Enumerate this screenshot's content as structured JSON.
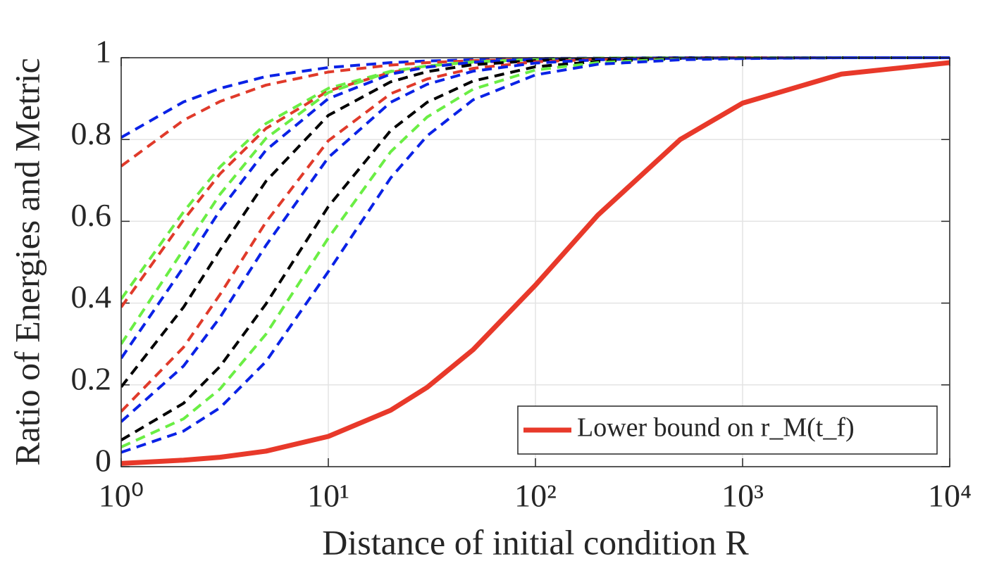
{
  "chart_data": {
    "type": "line",
    "xlabel": "Distance of initial condition R",
    "ylabel": "Ratio of Energies and Metric",
    "x": [
      1,
      2,
      3,
      5,
      10,
      20,
      30,
      50,
      100,
      200,
      500,
      1000,
      3000,
      10000
    ],
    "xscale": "log",
    "xlim": [
      1,
      10000
    ],
    "xticks": [
      {
        "value": 1,
        "label": "10⁰"
      },
      {
        "value": 10,
        "label": "10¹"
      },
      {
        "value": 100,
        "label": "10²"
      },
      {
        "value": 1000,
        "label": "10³"
      },
      {
        "value": 10000,
        "label": "10⁴"
      }
    ],
    "ylim": [
      0,
      1
    ],
    "yticks": [
      0,
      0.2,
      0.4,
      0.6,
      0.8,
      1
    ],
    "grid": true,
    "legend_position": "lower right",
    "series": [
      {
        "color": "#0a22e6",
        "style": "dashed",
        "values": [
          0.805,
          0.892,
          0.925,
          0.954,
          0.976,
          0.988,
          0.992,
          0.995,
          0.998,
          0.999,
          1.0,
          1.0,
          1.0,
          1.0
        ]
      },
      {
        "color": "#e03a2a",
        "style": "dashed",
        "values": [
          0.735,
          0.847,
          0.893,
          0.933,
          0.965,
          0.982,
          0.988,
          0.993,
          0.996,
          0.998,
          0.999,
          1.0,
          1.0,
          1.0
        ]
      },
      {
        "color": "#6aee44",
        "style": "dashed",
        "values": [
          0.41,
          0.623,
          0.733,
          0.839,
          0.925,
          0.967,
          0.98,
          0.989,
          0.995,
          0.998,
          0.999,
          1.0,
          1.0,
          1.0
        ]
      },
      {
        "color": "#e03a2a",
        "style": "dashed",
        "values": [
          0.39,
          0.603,
          0.716,
          0.827,
          0.919,
          0.964,
          0.978,
          0.988,
          0.995,
          0.998,
          0.999,
          1.0,
          1.0,
          1.0
        ]
      },
      {
        "color": "#6aee44",
        "style": "dashed",
        "values": [
          0.3,
          0.531,
          0.666,
          0.803,
          0.915,
          0.966,
          0.98,
          0.99,
          0.996,
          0.999,
          1.0,
          1.0,
          1.0,
          1.0
        ]
      },
      {
        "color": "#0a22e6",
        "style": "dashed",
        "values": [
          0.265,
          0.488,
          0.627,
          0.774,
          0.9,
          0.96,
          0.977,
          0.989,
          0.996,
          0.998,
          1.0,
          1.0,
          1.0,
          1.0
        ]
      },
      {
        "color": "#000000",
        "style": "dashed",
        "values": [
          0.195,
          0.39,
          0.53,
          0.698,
          0.859,
          0.941,
          0.966,
          0.983,
          0.993,
          0.998,
          0.999,
          1.0,
          1.0,
          1.0
        ]
      },
      {
        "color": "#e03a2a",
        "style": "dashed",
        "values": [
          0.135,
          0.292,
          0.421,
          0.598,
          0.797,
          0.912,
          0.948,
          0.974,
          0.99,
          0.996,
          0.999,
          1.0,
          1.0,
          1.0
        ]
      },
      {
        "color": "#0a22e6",
        "style": "dashed",
        "values": [
          0.11,
          0.246,
          0.365,
          0.541,
          0.756,
          0.891,
          0.935,
          0.967,
          0.987,
          0.995,
          0.999,
          0.999,
          1.0,
          1.0
        ]
      },
      {
        "color": "#000000",
        "style": "dashed",
        "values": [
          0.065,
          0.155,
          0.245,
          0.398,
          0.636,
          0.822,
          0.891,
          0.943,
          0.978,
          0.991,
          0.998,
          0.999,
          1.0,
          1.0
        ]
      },
      {
        "color": "#6aee44",
        "style": "dashed",
        "values": [
          0.048,
          0.117,
          0.19,
          0.324,
          0.559,
          0.77,
          0.855,
          0.923,
          0.97,
          0.988,
          0.997,
          0.999,
          1.0,
          1.0
        ]
      },
      {
        "color": "#0a22e6",
        "style": "dashed",
        "values": [
          0.035,
          0.087,
          0.144,
          0.257,
          0.477,
          0.706,
          0.809,
          0.897,
          0.958,
          0.984,
          0.995,
          0.998,
          1.0,
          1.0
        ]
      },
      {
        "name": "Lower bound on r_M(t_f)",
        "color": "#e8392a",
        "style": "solid",
        "values": [
          0.008,
          0.016,
          0.023,
          0.038,
          0.074,
          0.138,
          0.194,
          0.286,
          0.444,
          0.615,
          0.8,
          0.889,
          0.96,
          0.988
        ]
      }
    ]
  }
}
